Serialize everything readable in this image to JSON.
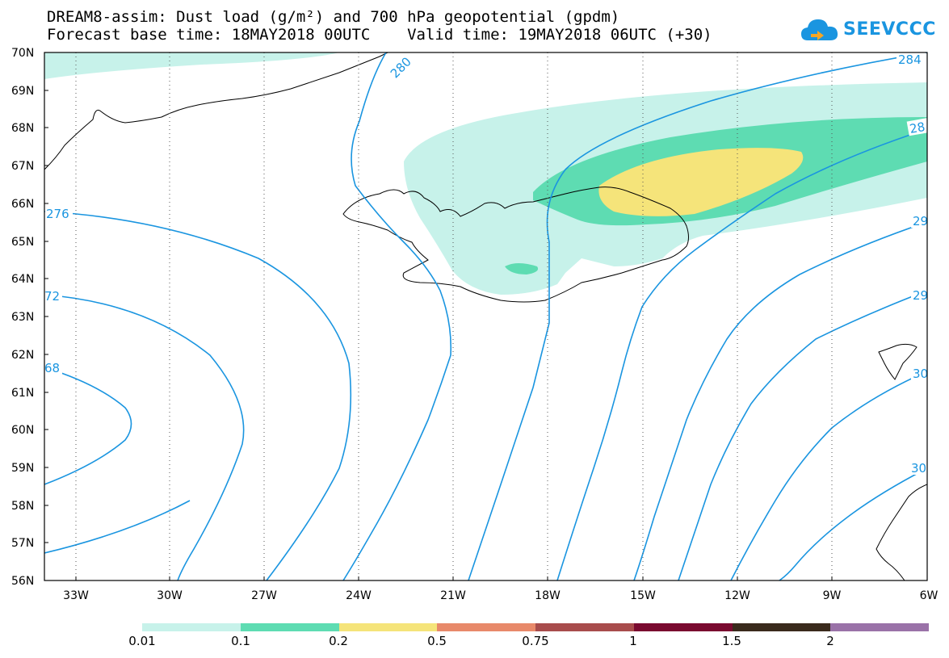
{
  "header": {
    "line1": "DREAM8-assim: Dust load (g/m²) and 700 hPa geopotential (gpdm)",
    "line2": "Forecast base time: 18MAY2018 00UTC    Valid time: 19MAY2018 06UTC (+30)"
  },
  "logo": {
    "text": "SEEVCCC",
    "color": "#1a95e0"
  },
  "axes": {
    "lat_labels": [
      "70N",
      "69N",
      "68N",
      "67N",
      "66N",
      "65N",
      "64N",
      "63N",
      "62N",
      "61N",
      "60N",
      "59N",
      "58N",
      "57N",
      "56N"
    ],
    "lon_labels": [
      "33W",
      "30W",
      "27W",
      "24W",
      "21W",
      "18W",
      "15W",
      "12W",
      "9W",
      "6W"
    ]
  },
  "contour_labels": [
    "280",
    "284",
    "28",
    "276",
    "72",
    "29",
    "68",
    "29",
    "30",
    "30"
  ],
  "colorbar": {
    "colors": [
      "#c7f2ea",
      "#5edcb2",
      "#f5e47a",
      "#e8896a",
      "#a84c4c",
      "#7a0a30",
      "#3a2a1c",
      "#9a72a8"
    ],
    "labels": [
      "0.01",
      "0.1",
      "0.2",
      "0.5",
      "0.75",
      "1",
      "1.5",
      "2"
    ]
  }
}
